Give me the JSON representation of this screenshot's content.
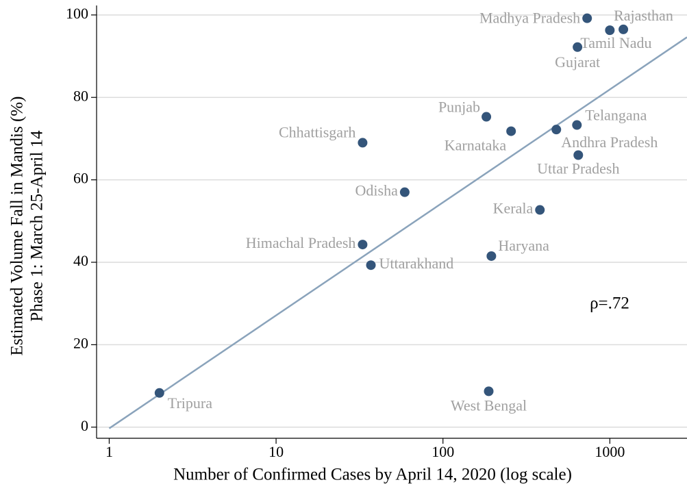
{
  "chart_data": {
    "type": "scatter",
    "x_label": "Number of Confirmed Cases by April 14, 2020 (log scale)",
    "y_label": [
      "Estimated Volume Fall in Mandis (%)",
      "Phase 1: March 25-April 14"
    ],
    "annotation": "ρ=.72",
    "xscale": "log",
    "xlim": [
      0.84,
      2900
    ],
    "xticks": [
      1,
      10,
      100,
      1000
    ],
    "ylim": [
      -2.7,
      102.3
    ],
    "yticks": [
      0,
      20,
      40,
      60,
      80,
      100
    ],
    "grid": true,
    "color": "#34557a",
    "label_color": "#a0a0a0",
    "trend_color": "#8aa3bb",
    "labels": [
      "Madhya Pradesh",
      "Rajasthan",
      "Tamil Nadu",
      "Gujarat",
      "Punjab",
      "Telangana",
      "Karnataka",
      "Andhra Pradesh",
      "Chhattisgarh",
      "Uttar Pradesh",
      "Odisha",
      "Kerala",
      "Himachal Pradesh",
      "Haryana",
      "Uttarakhand",
      "West Bengal",
      "Tripura"
    ],
    "x": [
      731,
      1205,
      1000,
      640,
      182,
      635,
      256,
      478,
      33,
      647,
      59,
      381,
      33,
      195,
      37,
      188,
      2
    ],
    "y": [
      99.2,
      96.5,
      96.3,
      92.2,
      75.3,
      73.3,
      71.8,
      72.2,
      69,
      66,
      57,
      52.7,
      44.3,
      41.5,
      39.3,
      8.7,
      8.3
    ],
    "trend_line": {
      "x": [
        1,
        2900
      ],
      "y": [
        -0.3,
        94.6
      ]
    }
  }
}
